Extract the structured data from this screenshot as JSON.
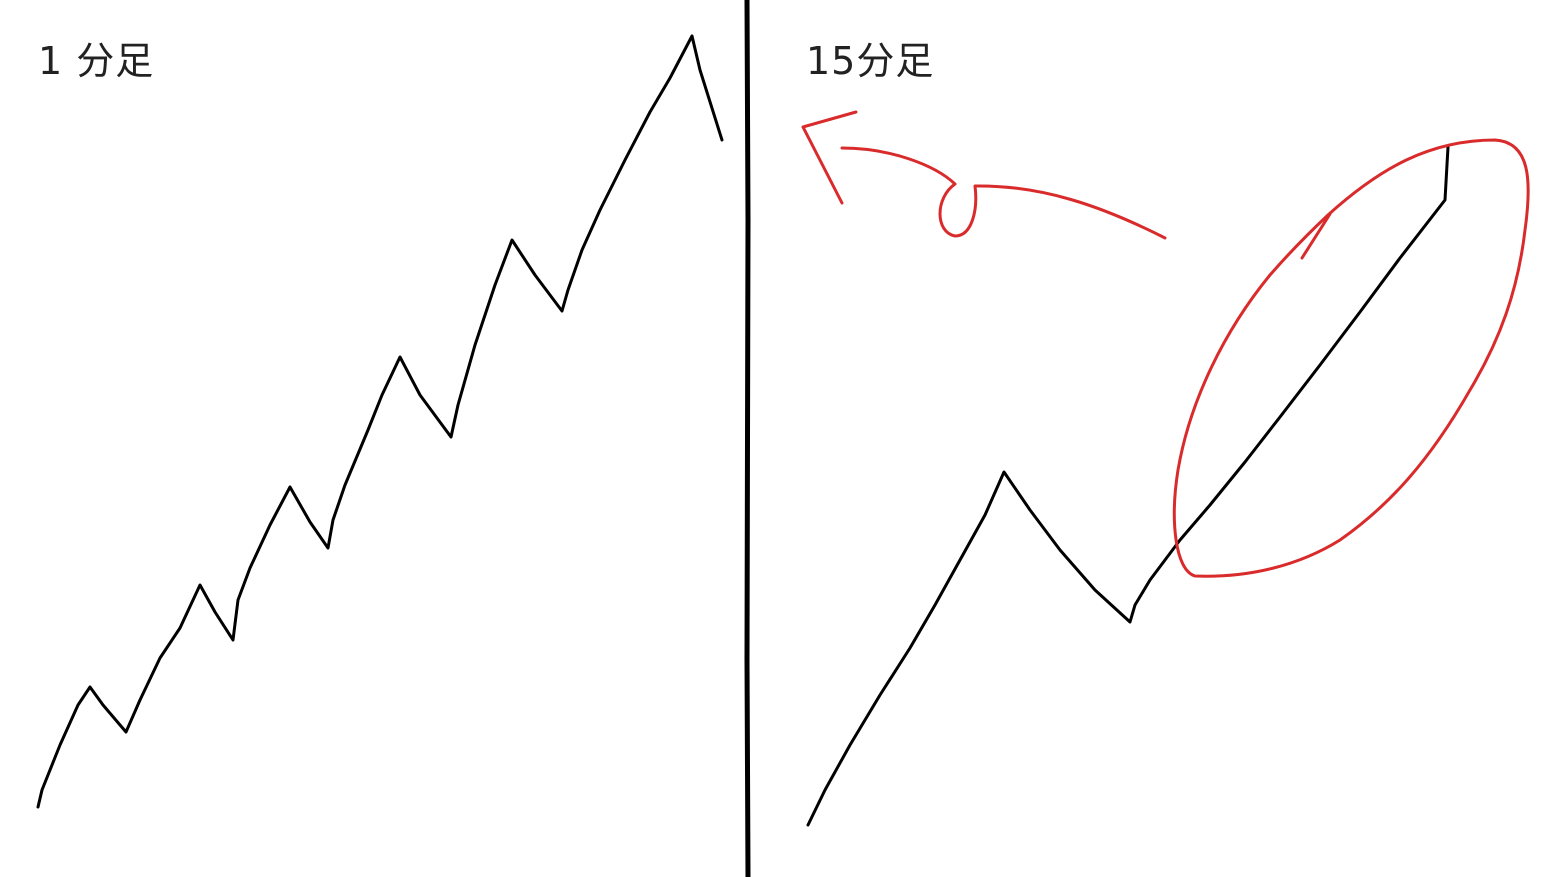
{
  "panels": {
    "left": {
      "title": "1 分足"
    },
    "right": {
      "title": "15分足"
    }
  },
  "colors": {
    "price_line": "#000000",
    "annotation": "#d92b2b",
    "divider": "#000000"
  }
}
